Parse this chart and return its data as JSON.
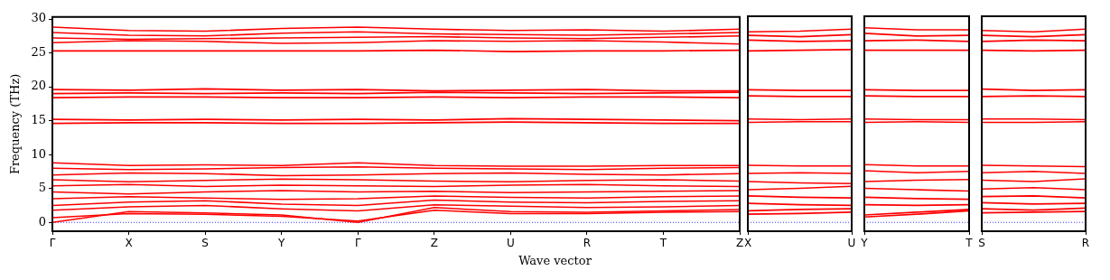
{
  "chart_data": [
    {
      "type": "line",
      "xlabel": "Wave vector",
      "ylabel": "Frequency (THz)",
      "categories": [
        "Γ",
        "X",
        "S",
        "Y",
        "Γ",
        "Z",
        "U",
        "R",
        "T",
        "Z"
      ],
      "ylim": [
        -1.3,
        30.3
      ],
      "yticks": [
        0,
        5,
        10,
        15,
        20,
        25,
        30
      ],
      "marker": "none",
      "legend": false,
      "grid": false,
      "ref_lines": [
        {
          "axis": "y",
          "value": 0,
          "color": "#0000ff",
          "line_style": "dotted"
        }
      ],
      "series": [
        {
          "color": "#ff0000",
          "values": [
            0,
            1.6,
            1.4,
            1.1,
            0,
            2.2,
            1.6,
            1.5,
            1.7,
            1.9
          ]
        },
        {
          "color": "#ff0000",
          "values": [
            0.7,
            1.3,
            1.2,
            0.9,
            0.2,
            1.8,
            1.3,
            1.3,
            1.5,
            1.6
          ]
        },
        {
          "color": "#ff0000",
          "values": [
            1.8,
            2.3,
            2.5,
            2.0,
            1.7,
            2.6,
            2.4,
            2.2,
            2.3,
            2.5
          ]
        },
        {
          "color": "#ff0000",
          "values": [
            2.5,
            3.0,
            3.2,
            2.7,
            2.5,
            3.3,
            3.0,
            2.9,
            3.1,
            3.2
          ]
        },
        {
          "color": "#ff0000",
          "values": [
            3.5,
            3.8,
            3.6,
            3.4,
            3.5,
            3.9,
            3.7,
            3.6,
            3.8,
            3.9
          ]
        },
        {
          "color": "#ff0000",
          "values": [
            4.5,
            4.2,
            4.5,
            4.7,
            4.5,
            4.6,
            4.4,
            4.5,
            4.6,
            4.7
          ]
        },
        {
          "color": "#ff0000",
          "values": [
            5.4,
            5.6,
            5.3,
            5.5,
            5.4,
            5.3,
            5.5,
            5.6,
            5.4,
            5.3
          ]
        },
        {
          "color": "#ff0000",
          "values": [
            6.3,
            6.0,
            6.2,
            6.4,
            6.3,
            6.1,
            6.0,
            6.2,
            6.3,
            6.1
          ]
        },
        {
          "color": "#ff0000",
          "values": [
            7.0,
            7.3,
            7.2,
            6.9,
            7.0,
            7.2,
            7.3,
            7.1,
            7.0,
            7.2
          ]
        },
        {
          "color": "#ff0000",
          "values": [
            8.0,
            7.8,
            7.9,
            8.1,
            8.2,
            8.0,
            7.9,
            7.8,
            8.0,
            8.1
          ]
        },
        {
          "color": "#ff0000",
          "values": [
            8.8,
            8.4,
            8.5,
            8.4,
            8.8,
            8.4,
            8.3,
            8.3,
            8.4,
            8.4
          ]
        },
        {
          "color": "#ff0000",
          "values": [
            14.6,
            14.7,
            14.7,
            14.6,
            14.6,
            14.7,
            14.8,
            14.7,
            14.6,
            14.6
          ]
        },
        {
          "color": "#ff0000",
          "values": [
            15.2,
            15.1,
            15.2,
            15.1,
            15.2,
            15.1,
            15.3,
            15.2,
            15.1,
            15.0
          ]
        },
        {
          "color": "#ff0000",
          "values": [
            18.4,
            18.5,
            18.5,
            18.4,
            18.4,
            18.5,
            18.4,
            18.5,
            18.5,
            18.4
          ]
        },
        {
          "color": "#ff0000",
          "values": [
            19.0,
            19.1,
            19.0,
            19.1,
            19.0,
            19.2,
            19.1,
            19.0,
            19.1,
            19.2
          ]
        },
        {
          "color": "#ff0000",
          "values": [
            19.6,
            19.5,
            19.7,
            19.5,
            19.6,
            19.4,
            19.5,
            19.6,
            19.4,
            19.4
          ]
        },
        {
          "color": "#ff0000",
          "values": [
            25.3,
            25.3,
            25.3,
            25.3,
            25.3,
            25.4,
            25.2,
            25.3,
            25.3,
            25.4
          ]
        },
        {
          "color": "#ff0000",
          "values": [
            26.5,
            26.8,
            26.7,
            26.4,
            26.5,
            26.8,
            26.7,
            26.8,
            26.6,
            26.3
          ]
        },
        {
          "color": "#ff0000",
          "values": [
            27.2,
            27.0,
            27.1,
            27.2,
            27.3,
            27.4,
            27.2,
            27.1,
            27.3,
            27.5
          ]
        },
        {
          "color": "#ff0000",
          "values": [
            28.0,
            27.6,
            27.5,
            27.9,
            28.1,
            27.8,
            27.7,
            27.6,
            27.8,
            28.0
          ]
        },
        {
          "color": "#ff0000",
          "values": [
            28.8,
            28.3,
            28.2,
            28.6,
            28.8,
            28.5,
            28.3,
            28.4,
            28.2,
            28.5
          ]
        }
      ]
    },
    {
      "type": "line",
      "categories": [
        "X",
        null,
        "U"
      ],
      "ylim": [
        -1.3,
        30.3
      ],
      "yticks": [
        0,
        5,
        10,
        15,
        20,
        25,
        30
      ],
      "tick_labels": "x",
      "marker": "none",
      "legend": false,
      "grid": false,
      "ref_lines": [
        {
          "axis": "y",
          "value": 0,
          "color": "#0000ff",
          "line_style": "dotted"
        }
      ],
      "series": [
        {
          "color": "#ff0000",
          "values": [
            1.2,
            1.3,
            1.5
          ]
        },
        {
          "color": "#ff0000",
          "values": [
            1.7,
            1.9,
            2.0
          ]
        },
        {
          "color": "#ff0000",
          "values": [
            2.8,
            2.6,
            2.5
          ]
        },
        {
          "color": "#ff0000",
          "values": [
            3.9,
            3.7,
            3.6
          ]
        },
        {
          "color": "#ff0000",
          "values": [
            4.8,
            5.0,
            5.3
          ]
        },
        {
          "color": "#ff0000",
          "values": [
            6.0,
            5.8,
            5.7
          ]
        },
        {
          "color": "#ff0000",
          "values": [
            7.2,
            7.3,
            7.2
          ]
        },
        {
          "color": "#ff0000",
          "values": [
            8.4,
            8.3,
            8.3
          ]
        },
        {
          "color": "#ff0000",
          "values": [
            14.7,
            14.8,
            14.8
          ]
        },
        {
          "color": "#ff0000",
          "values": [
            15.2,
            15.1,
            15.2
          ]
        },
        {
          "color": "#ff0000",
          "values": [
            18.6,
            18.5,
            18.5
          ]
        },
        {
          "color": "#ff0000",
          "values": [
            19.5,
            19.4,
            19.4
          ]
        },
        {
          "color": "#ff0000",
          "values": [
            25.2,
            25.3,
            25.4
          ]
        },
        {
          "color": "#ff0000",
          "values": [
            26.8,
            26.6,
            26.7
          ]
        },
        {
          "color": "#ff0000",
          "values": [
            27.5,
            27.3,
            27.6
          ]
        },
        {
          "color": "#ff0000",
          "values": [
            28.0,
            28.1,
            28.4
          ]
        }
      ]
    },
    {
      "type": "line",
      "categories": [
        "Y",
        null,
        "T"
      ],
      "ylim": [
        -1.3,
        30.3
      ],
      "yticks": [
        0,
        5,
        10,
        15,
        20,
        25,
        30
      ],
      "tick_labels": "x",
      "marker": "none",
      "legend": false,
      "grid": false,
      "ref_lines": [
        {
          "axis": "y",
          "value": 0,
          "color": "#0000ff",
          "line_style": "dotted"
        }
      ],
      "series": [
        {
          "color": "#ff0000",
          "values": [
            0.8,
            1.2,
            1.7
          ]
        },
        {
          "color": "#ff0000",
          "values": [
            1.1,
            1.5,
            1.9
          ]
        },
        {
          "color": "#ff0000",
          "values": [
            2.6,
            2.5,
            2.6
          ]
        },
        {
          "color": "#ff0000",
          "values": [
            3.7,
            3.5,
            3.4
          ]
        },
        {
          "color": "#ff0000",
          "values": [
            5.0,
            4.8,
            4.6
          ]
        },
        {
          "color": "#ff0000",
          "values": [
            6.0,
            6.2,
            6.3
          ]
        },
        {
          "color": "#ff0000",
          "values": [
            7.6,
            7.3,
            7.5
          ]
        },
        {
          "color": "#ff0000",
          "values": [
            8.5,
            8.3,
            8.3
          ]
        },
        {
          "color": "#ff0000",
          "values": [
            14.7,
            14.8,
            14.7
          ]
        },
        {
          "color": "#ff0000",
          "values": [
            15.2,
            15.1,
            15.1
          ]
        },
        {
          "color": "#ff0000",
          "values": [
            18.6,
            18.5,
            18.5
          ]
        },
        {
          "color": "#ff0000",
          "values": [
            19.5,
            19.4,
            19.4
          ]
        },
        {
          "color": "#ff0000",
          "values": [
            25.3,
            25.3,
            25.3
          ]
        },
        {
          "color": "#ff0000",
          "values": [
            26.7,
            26.8,
            26.6
          ]
        },
        {
          "color": "#ff0000",
          "values": [
            27.8,
            27.4,
            27.5
          ]
        },
        {
          "color": "#ff0000",
          "values": [
            28.6,
            28.3,
            28.3
          ]
        }
      ]
    },
    {
      "type": "line",
      "categories": [
        "S",
        null,
        "R"
      ],
      "ylim": [
        -1.3,
        30.3
      ],
      "yticks": [
        0,
        5,
        10,
        15,
        20,
        25,
        30
      ],
      "tick_labels": "x",
      "marker": "none",
      "legend": false,
      "grid": false,
      "ref_lines": [
        {
          "axis": "y",
          "value": 0,
          "color": "#0000ff",
          "line_style": "dotted"
        }
      ],
      "series": [
        {
          "color": "#ff0000",
          "values": [
            1.4,
            1.5,
            1.6
          ]
        },
        {
          "color": "#ff0000",
          "values": [
            2.0,
            1.8,
            2.1
          ]
        },
        {
          "color": "#ff0000",
          "values": [
            2.9,
            2.7,
            2.8
          ]
        },
        {
          "color": "#ff0000",
          "values": [
            3.8,
            3.9,
            3.6
          ]
        },
        {
          "color": "#ff0000",
          "values": [
            4.9,
            5.1,
            4.8
          ]
        },
        {
          "color": "#ff0000",
          "values": [
            6.2,
            6.0,
            6.4
          ]
        },
        {
          "color": "#ff0000",
          "values": [
            7.3,
            7.5,
            7.2
          ]
        },
        {
          "color": "#ff0000",
          "values": [
            8.4,
            8.3,
            8.2
          ]
        },
        {
          "color": "#ff0000",
          "values": [
            14.7,
            14.7,
            14.8
          ]
        },
        {
          "color": "#ff0000",
          "values": [
            15.2,
            15.2,
            15.1
          ]
        },
        {
          "color": "#ff0000",
          "values": [
            18.5,
            18.6,
            18.5
          ]
        },
        {
          "color": "#ff0000",
          "values": [
            19.6,
            19.4,
            19.5
          ]
        },
        {
          "color": "#ff0000",
          "values": [
            25.3,
            25.2,
            25.3
          ]
        },
        {
          "color": "#ff0000",
          "values": [
            26.6,
            26.8,
            26.7
          ]
        },
        {
          "color": "#ff0000",
          "values": [
            27.5,
            27.3,
            27.6
          ]
        },
        {
          "color": "#ff0000",
          "values": [
            28.2,
            28.0,
            28.4
          ]
        }
      ]
    }
  ]
}
